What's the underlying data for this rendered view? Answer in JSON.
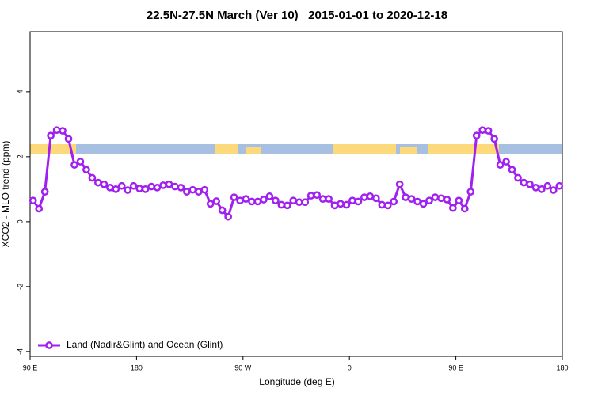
{
  "chart_data": {
    "type": "line",
    "title": "22.5N-27.5N March (Ver 10)   2015-01-01 to 2020-12-18",
    "xlabel": "Longitude (deg E)",
    "ylabel": "XCO2 - MLO trend (ppm)",
    "xlim": [
      90,
      540
    ],
    "ylim": [
      -4.15,
      5.85
    ],
    "xticks": [
      {
        "value": 90,
        "label": "90 E"
      },
      180,
      {
        "value": 270,
        "label": "90 W"
      },
      {
        "value": 360,
        "label": "0"
      },
      {
        "value": 450,
        "label": "90 E"
      },
      {
        "value": 540,
        "label": "180"
      }
    ],
    "yticks": [
      -4,
      -2,
      0,
      2,
      4
    ],
    "legend": "bottom-left",
    "x": [
      92.5,
      97.5,
      102.5,
      107.5,
      112.5,
      117.5,
      122.5,
      127.5,
      132.5,
      137.5,
      142.5,
      147.5,
      152.5,
      157.5,
      162.5,
      167.5,
      172.5,
      177.5,
      182.5,
      187.5,
      192.5,
      197.5,
      202.5,
      207.5,
      212.5,
      217.5,
      222.5,
      227.5,
      232.5,
      237.5,
      242.5,
      247.5,
      252.5,
      257.5,
      262.5,
      267.5,
      272.5,
      277.5,
      282.5,
      287.5,
      292.5,
      297.5,
      302.5,
      307.5,
      312.5,
      317.5,
      322.5,
      327.5,
      332.5,
      337.5,
      342.5,
      347.5,
      352.5,
      357.5,
      362.5,
      367.5,
      372.5,
      377.5,
      382.5,
      387.5,
      392.5,
      397.5,
      402.5,
      407.5,
      412.5,
      417.5,
      422.5,
      427.5,
      432.5,
      437.5,
      442.5,
      447.5,
      452.5,
      457.5,
      462.5,
      467.5,
      472.5,
      477.5,
      482.5,
      487.5,
      492.5,
      497.5,
      502.5,
      507.5,
      512.5,
      517.5,
      522.5,
      527.5,
      532.5,
      537.5
    ],
    "series": [
      {
        "name": "Land (Nadir&Glint) and Ocean (Glint)",
        "color": "#a020f0",
        "values": [
          0.65,
          0.4,
          0.92,
          2.65,
          2.82,
          2.8,
          2.55,
          1.75,
          1.85,
          1.6,
          1.35,
          1.2,
          1.15,
          1.05,
          1.0,
          1.1,
          0.97,
          1.1,
          1.02,
          1.0,
          1.08,
          1.05,
          1.12,
          1.15,
          1.08,
          1.05,
          0.92,
          0.98,
          0.92,
          0.98,
          0.55,
          0.63,
          0.35,
          0.15,
          0.75,
          0.65,
          0.7,
          0.62,
          0.62,
          0.68,
          0.78,
          0.65,
          0.52,
          0.5,
          0.65,
          0.6,
          0.6,
          0.8,
          0.82,
          0.7,
          0.7,
          0.5,
          0.55,
          0.52,
          0.65,
          0.62,
          0.75,
          0.78,
          0.72,
          0.52,
          0.5,
          0.62,
          1.15,
          0.75,
          0.7,
          0.62,
          0.55,
          0.65,
          0.75,
          0.72,
          0.68,
          0.42,
          0.65,
          0.4,
          0.92,
          2.65,
          2.82,
          2.8,
          2.55,
          1.75,
          1.85,
          1.6,
          1.35,
          1.2,
          1.15,
          1.05,
          1.0,
          1.1,
          0.97,
          1.1
        ]
      }
    ]
  }
}
